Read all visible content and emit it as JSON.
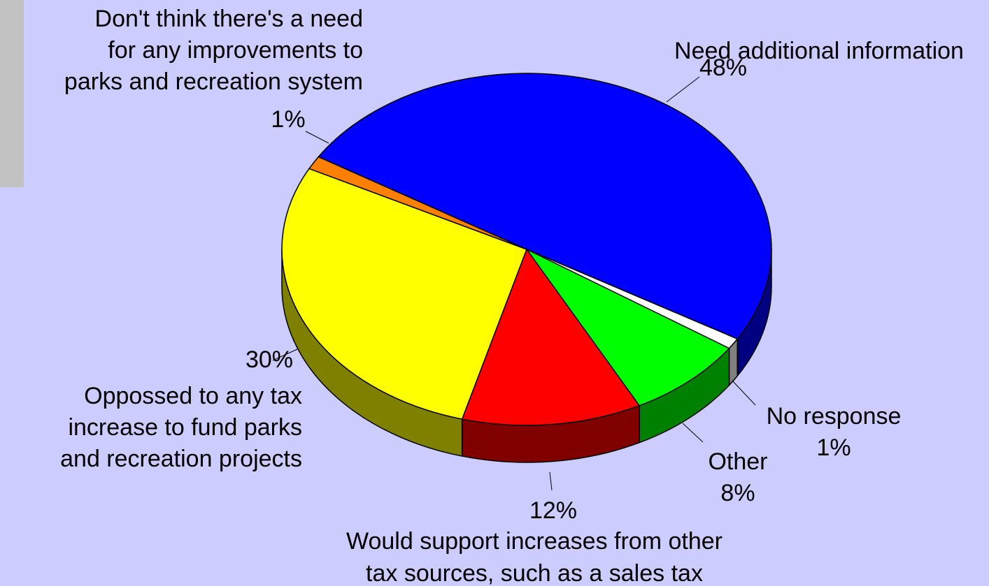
{
  "chart_data": {
    "type": "pie",
    "title": "",
    "slices": [
      {
        "label_lines": [
          "Need additional information"
        ],
        "value": 48,
        "value_label": "48%",
        "color": "#0000ff",
        "side_color": "#000080"
      },
      {
        "label_lines": [
          "No response"
        ],
        "value": 1,
        "value_label": "1%",
        "color": "#ffffff",
        "side_color": "#808080"
      },
      {
        "label_lines": [
          "Other"
        ],
        "value": 8,
        "value_label": "8%",
        "color": "#00ff00",
        "side_color": "#008000"
      },
      {
        "label_lines": [
          "Would support increases from other",
          "tax sources, such as a sales tax"
        ],
        "value": 12,
        "value_label": "12%",
        "color": "#ff0000",
        "side_color": "#800000"
      },
      {
        "label_lines": [
          "Oppossed to any tax",
          "increase to fund parks",
          "and recreation projects"
        ],
        "value": 30,
        "value_label": "30%",
        "color": "#ffff00",
        "side_color": "#808000"
      },
      {
        "label_lines": [
          "Don't think there's a need",
          "for any improvements to",
          "parks and recreation system"
        ],
        "value": 1,
        "value_label": "1%",
        "color": "#ff8000",
        "side_color": "#804000"
      }
    ],
    "legend": "none",
    "style": "3d-pie"
  }
}
